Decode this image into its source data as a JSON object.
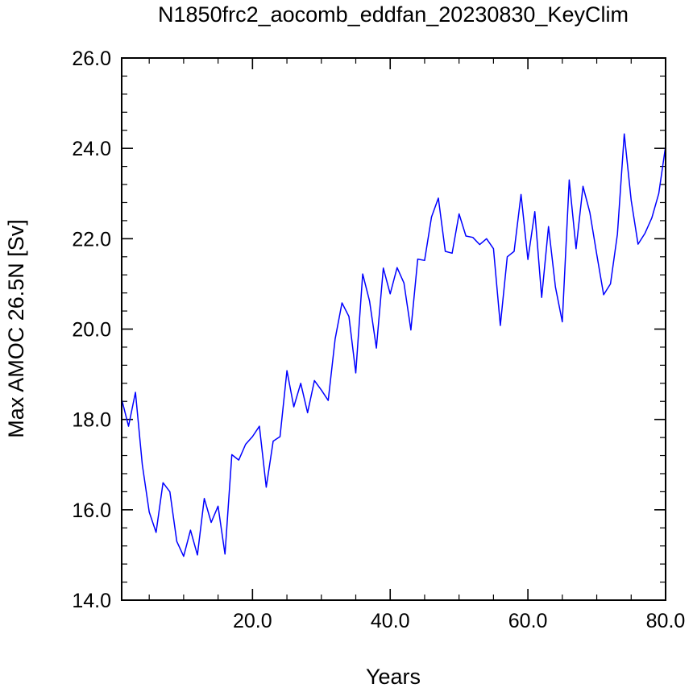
{
  "chart_data": {
    "type": "line",
    "title": "N1850frc2_aocomb_eddfan_20230830_KeyClim",
    "xlabel": "Years",
    "ylabel": "Max AMOC 26.5N [Sv]",
    "xlim": [
      1,
      80
    ],
    "ylim": [
      14.0,
      26.0
    ],
    "x_ticks": [
      20.0,
      40.0,
      60.0,
      80.0
    ],
    "x_tick_labels": [
      "20.0",
      "40.0",
      "60.0",
      "80.0"
    ],
    "y_ticks": [
      14.0,
      16.0,
      18.0,
      20.0,
      22.0,
      24.0,
      26.0
    ],
    "y_tick_labels": [
      "14.0",
      "16.0",
      "18.0",
      "20.0",
      "22.0",
      "24.0",
      "26.0"
    ],
    "grid": false,
    "line_color": "#0000ff",
    "series": [
      {
        "x": [
          1,
          2,
          3,
          4,
          5,
          6,
          7,
          8,
          9,
          10,
          11,
          12,
          13,
          14,
          15,
          16,
          17,
          18,
          19,
          20,
          21,
          22,
          23,
          24,
          25,
          26,
          27,
          28,
          29,
          30,
          31,
          32,
          33,
          34,
          35,
          36,
          37,
          38,
          39,
          40,
          41,
          42,
          43,
          44,
          45,
          46,
          47,
          48,
          49,
          50,
          51,
          52,
          53,
          54,
          55,
          56,
          57,
          58,
          59,
          60,
          61,
          62,
          63,
          64,
          65,
          66,
          67,
          68,
          69,
          70,
          71,
          72,
          73,
          74,
          75,
          76,
          77,
          78,
          79,
          80
        ],
        "values": [
          18.45,
          17.85,
          18.6,
          17.0,
          15.95,
          15.5,
          16.6,
          16.4,
          15.3,
          14.97,
          15.55,
          15.0,
          16.25,
          15.72,
          16.08,
          15.02,
          17.22,
          17.1,
          17.45,
          17.62,
          17.85,
          16.5,
          17.52,
          17.62,
          19.08,
          18.28,
          18.8,
          18.15,
          18.86,
          18.65,
          18.42,
          19.78,
          20.58,
          20.28,
          19.03,
          21.22,
          20.62,
          19.58,
          21.35,
          20.78,
          21.36,
          21.02,
          19.98,
          21.55,
          21.52,
          22.48,
          22.9,
          21.72,
          21.68,
          22.55,
          22.06,
          22.03,
          21.87,
          22.0,
          21.78,
          20.08,
          21.6,
          21.72,
          22.98,
          21.54,
          22.6,
          20.7,
          22.27,
          20.93,
          20.16,
          23.3,
          21.78,
          23.16,
          22.58,
          21.65,
          20.76,
          21.0,
          22.1,
          24.32,
          22.85,
          21.88,
          22.12,
          22.46,
          23.0,
          24.05
        ]
      }
    ]
  }
}
